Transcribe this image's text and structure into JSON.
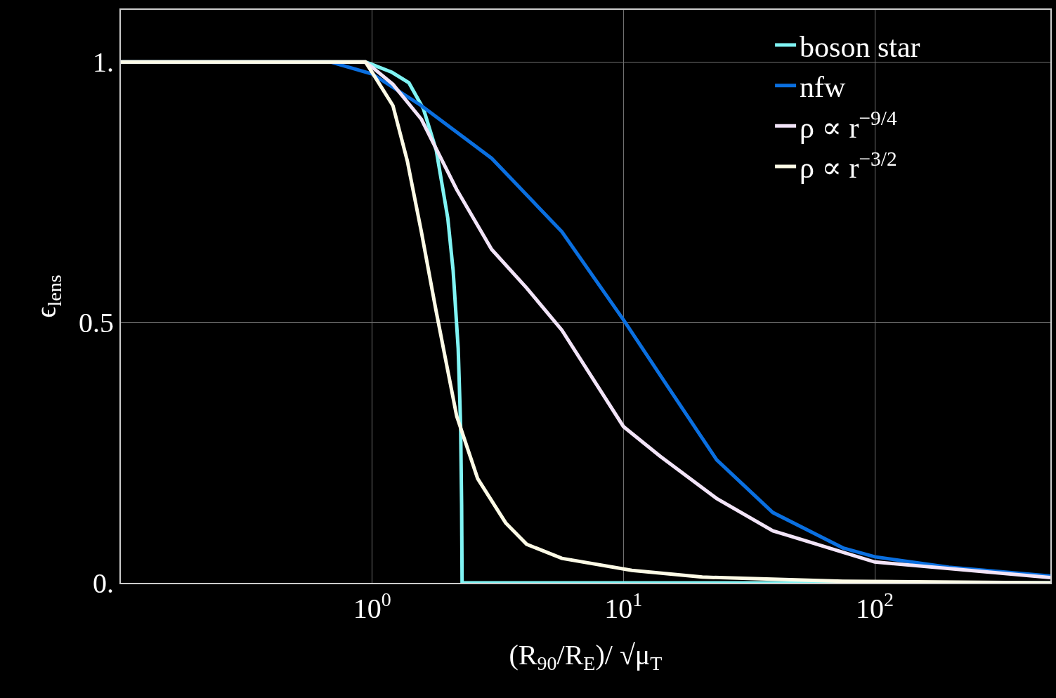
{
  "chart_data": {
    "type": "line",
    "xlabel": "(R$_{90}$/R$_{E}$)/ √μ$_{T}$",
    "ylabel": "ϵ$_{lens}$",
    "log": "x",
    "xlim": [
      0.1,
      500
    ],
    "ylim": [
      0,
      1.1
    ],
    "xticks": [
      {
        "value": 1,
        "label": "10$^{0}$"
      },
      {
        "value": 10,
        "label": "10$^{1}$"
      },
      {
        "value": 100,
        "label": "10$^{2}$"
      }
    ],
    "yticks": [
      {
        "value": 0,
        "label": "0."
      },
      0.5,
      {
        "value": 1,
        "label": "1."
      }
    ],
    "grid": true,
    "legend": "top right",
    "marker": "none",
    "line_style": "solid",
    "series": [
      {
        "name": "boson star",
        "color": "#80f4f4",
        "x": [
          0.1,
          0.94,
          1,
          1.2,
          1.4,
          1.6,
          1.8,
          2.0,
          2.1,
          2.2,
          2.25,
          2.27,
          2.28,
          500
        ],
        "values": [
          1,
          1,
          0.995,
          0.98,
          0.96,
          0.91,
          0.83,
          0.7,
          0.6,
          0.45,
          0.3,
          0.15,
          0,
          0
        ]
      },
      {
        "name": "nfw",
        "color": "#0a6fe0",
        "x": [
          0.1,
          0.68,
          1,
          1.57,
          2.99,
          5.69,
          10,
          15,
          23.5,
          39.3,
          74.8,
          100,
          197,
          500
        ],
        "values": [
          1,
          1,
          0.977,
          0.916,
          0.815,
          0.674,
          0.505,
          0.377,
          0.236,
          0.135,
          0.067,
          0.05,
          0.03,
          0.013
        ]
      },
      {
        "name": "ρ ∝ r$^{−9/4}$",
        "color": "#f2e4f8",
        "x": [
          0.1,
          0.94,
          1,
          1.21,
          1.57,
          2.17,
          2.99,
          4.12,
          5.69,
          10,
          14,
          23.5,
          39.3,
          100,
          500
        ],
        "values": [
          1,
          1,
          0.99,
          0.957,
          0.89,
          0.755,
          0.64,
          0.566,
          0.485,
          0.3,
          0.243,
          0.162,
          0.1,
          0.04,
          0.01
        ]
      },
      {
        "name": "ρ ∝ r$^{−3/2}$",
        "color": "#fdfbe6",
        "x": [
          0.1,
          0.94,
          1,
          1.21,
          1.38,
          1.57,
          1.79,
          2.17,
          2.63,
          3.4,
          4.12,
          5.69,
          10.8,
          20.6,
          74.8,
          500
        ],
        "values": [
          1,
          1,
          0.98,
          0.916,
          0.81,
          0.674,
          0.526,
          0.32,
          0.2,
          0.115,
          0.074,
          0.047,
          0.024,
          0.011,
          0.003,
          0
        ]
      }
    ]
  }
}
